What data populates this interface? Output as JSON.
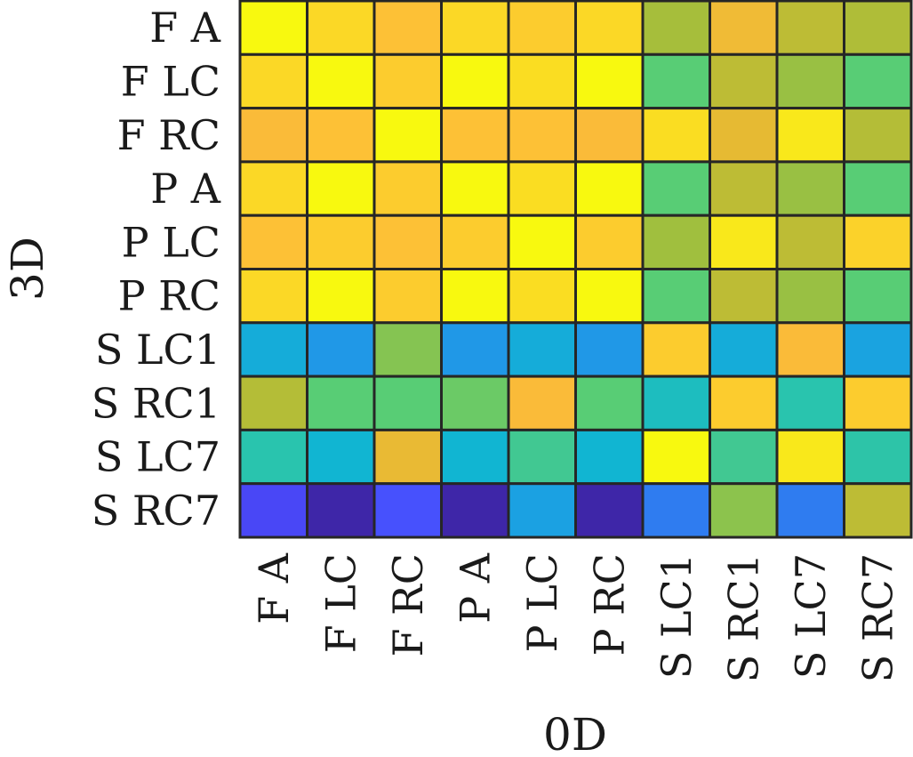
{
  "chart_data": {
    "type": "heatmap",
    "title": "",
    "xlabel": "0D",
    "ylabel": "3D",
    "x_categories": [
      "F A",
      "F LC",
      "F RC",
      "P A",
      "P LC",
      "P RC",
      "S LC1",
      "S RC1",
      "S LC7",
      "S RC7"
    ],
    "y_categories": [
      "F A",
      "F LC",
      "F RC",
      "P A",
      "P LC",
      "P RC",
      "S LC1",
      "S RC1",
      "S LC7",
      "S RC7"
    ],
    "colormap": [
      "#3e26a8",
      "#4a4bff",
      "#1f9ae6",
      "#10b4d4",
      "#26c3b1",
      "#5bcd72",
      "#a4be3b",
      "#d8ba2f",
      "#fdbb3a",
      "#f8f90f"
    ],
    "values": [
      [
        1.0,
        0.94,
        0.9,
        0.94,
        0.92,
        0.94,
        0.67,
        0.85,
        0.72,
        0.69
      ],
      [
        0.94,
        1.0,
        0.92,
        1.0,
        0.95,
        1.0,
        0.55,
        0.72,
        0.65,
        0.55
      ],
      [
        0.88,
        0.9,
        1.0,
        0.9,
        0.9,
        0.88,
        0.95,
        0.82,
        0.97,
        0.7
      ],
      [
        0.94,
        1.0,
        0.92,
        1.0,
        0.95,
        1.0,
        0.55,
        0.72,
        0.65,
        0.55
      ],
      [
        0.9,
        0.92,
        0.9,
        0.92,
        1.0,
        0.92,
        0.66,
        0.97,
        0.72,
        0.93
      ],
      [
        0.94,
        1.0,
        0.92,
        1.0,
        0.95,
        1.0,
        0.55,
        0.72,
        0.65,
        0.55
      ],
      [
        0.3,
        0.22,
        0.62,
        0.22,
        0.3,
        0.22,
        0.92,
        0.3,
        0.88,
        0.26
      ],
      [
        0.7,
        0.55,
        0.55,
        0.58,
        0.88,
        0.55,
        0.4,
        0.92,
        0.45,
        0.92
      ],
      [
        0.45,
        0.34,
        0.83,
        0.34,
        0.5,
        0.34,
        1.0,
        0.5,
        0.97,
        0.46
      ],
      [
        0.1,
        0.0,
        0.12,
        0.0,
        0.25,
        0.0,
        0.18,
        0.63,
        0.18,
        0.72
      ]
    ]
  }
}
